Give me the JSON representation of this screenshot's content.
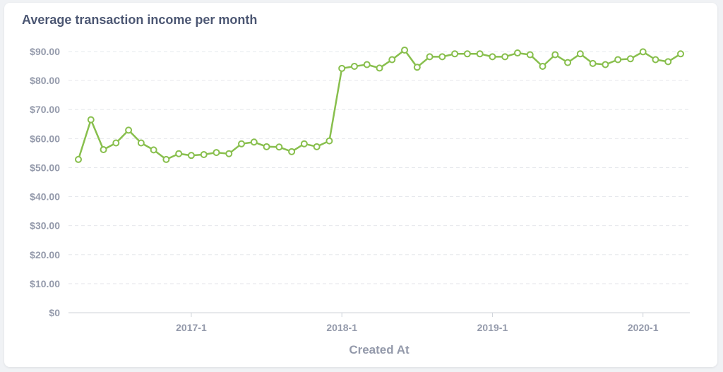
{
  "card": {
    "title": "Average transaction income per month"
  },
  "chart_data": {
    "type": "line",
    "title": "Average transaction income per month",
    "xlabel": "Created At",
    "ylabel": "",
    "ylim": [
      0,
      90
    ],
    "yticks": [
      "$0",
      "$10.00",
      "$20.00",
      "$30.00",
      "$40.00",
      "$50.00",
      "$60.00",
      "$70.00",
      "$80.00",
      "$90.00"
    ],
    "yticks_values": [
      0,
      10,
      20,
      30,
      40,
      50,
      60,
      70,
      80,
      90
    ],
    "xticks": [
      "2017-1",
      "2018-1",
      "2019-1",
      "2020-1"
    ],
    "grid": true,
    "color": "#88bf4d",
    "x": [
      "2016-04",
      "2016-05",
      "2016-06",
      "2016-07",
      "2016-08",
      "2016-09",
      "2016-10",
      "2016-11",
      "2016-12",
      "2017-01",
      "2017-02",
      "2017-03",
      "2017-04",
      "2017-05",
      "2017-06",
      "2017-07",
      "2017-08",
      "2017-09",
      "2017-10",
      "2017-11",
      "2017-12",
      "2018-01",
      "2018-02",
      "2018-03",
      "2018-04",
      "2018-05",
      "2018-06",
      "2018-07",
      "2018-08",
      "2018-09",
      "2018-10",
      "2018-11",
      "2018-12",
      "2019-01",
      "2019-02",
      "2019-03",
      "2019-04",
      "2019-05",
      "2019-06",
      "2019-07",
      "2019-08",
      "2019-09",
      "2019-10",
      "2019-11",
      "2019-12",
      "2020-01",
      "2020-02",
      "2020-03",
      "2020-04"
    ],
    "series": [
      {
        "values": [
          52.8,
          66.5,
          56.2,
          58.5,
          62.9,
          58.5,
          56.1,
          52.8,
          54.8,
          54.2,
          54.5,
          55.2,
          54.8,
          58.2,
          58.8,
          57.2,
          57.1,
          55.5,
          58.2,
          57.2,
          59.2,
          84.2,
          84.9,
          85.5,
          84.3,
          87.2,
          90.5,
          84.6,
          88.2,
          88.2,
          89.2,
          89.2,
          89.2,
          88.2,
          88.2,
          89.5,
          88.9,
          84.9,
          88.9,
          86.2,
          89.2,
          85.9,
          85.5,
          87.2,
          87.5,
          89.9,
          87.2,
          86.5,
          89.2
        ]
      }
    ]
  }
}
